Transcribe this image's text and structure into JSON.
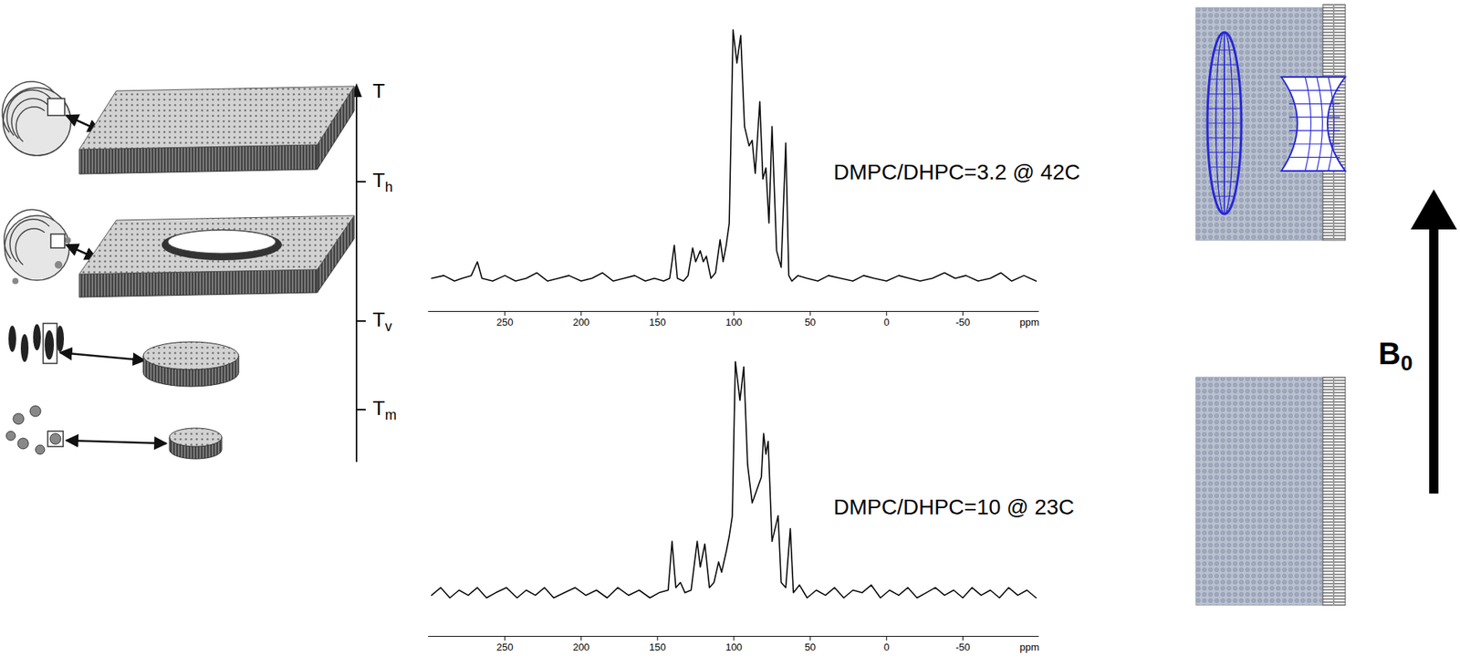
{
  "chart_data": [
    {
      "type": "line",
      "title": "DMPC/DHPC=3.2 @ 42C",
      "xlabel": "ppm",
      "xlim": [
        300,
        -100
      ],
      "xticks": [
        250,
        200,
        150,
        100,
        50,
        0,
        -50
      ],
      "ylim": [
        -2,
        104
      ],
      "tick_labels": "x",
      "color": "#000000",
      "x": [
        298,
        290,
        283,
        278,
        272,
        268,
        265,
        258,
        250,
        243,
        236,
        229,
        222,
        215,
        208,
        200,
        193,
        186,
        179,
        172,
        165,
        158,
        152,
        146,
        142,
        139,
        137,
        133,
        130,
        127,
        125,
        122,
        120,
        118,
        115,
        112,
        109,
        107,
        105,
        103,
        100.5,
        98,
        95.5,
        93,
        90,
        88,
        86,
        83,
        81,
        79,
        77,
        75,
        72,
        69,
        66,
        64,
        62,
        58,
        52,
        45,
        38,
        30,
        22,
        15,
        8,
        0,
        -8,
        -15,
        -22,
        -30,
        -38,
        -45,
        -52,
        -60,
        -68,
        -75,
        -82,
        -90,
        -98
      ],
      "values": [
        10,
        11,
        9,
        10,
        11,
        16,
        10,
        9,
        11,
        9,
        10,
        12,
        9,
        10,
        11,
        9,
        10,
        12,
        9,
        10,
        11,
        9,
        10,
        9,
        10,
        22,
        10,
        9,
        11,
        21,
        16,
        20,
        16,
        18,
        10,
        12,
        24,
        16,
        22,
        30,
        100,
        88,
        98,
        65,
        58,
        60,
        48,
        74,
        46,
        50,
        30,
        65,
        20,
        14,
        59,
        11,
        9,
        11,
        10,
        9,
        11,
        10,
        9,
        11,
        10,
        9,
        11,
        10,
        9,
        10,
        12,
        10,
        11,
        9,
        10,
        12,
        9,
        11,
        9
      ]
    },
    {
      "type": "line",
      "title": "DMPC/DHPC=10 @ 23C",
      "xlabel": "ppm",
      "xlim": [
        300,
        -100
      ],
      "xticks": [
        250,
        200,
        150,
        100,
        50,
        0,
        -50
      ],
      "ylim": [
        -7,
        104
      ],
      "tick_labels": "x",
      "color": "#000000",
      "x": [
        298,
        292,
        286,
        280,
        274,
        268,
        262,
        256,
        249,
        242,
        236,
        230,
        224,
        218,
        211,
        204,
        197,
        190,
        183,
        176,
        169,
        162,
        155,
        149,
        143,
        140.5,
        138,
        135,
        132,
        128,
        124,
        122,
        119,
        116,
        113,
        110,
        108,
        105,
        103,
        101,
        99,
        96,
        93.5,
        91,
        88,
        85,
        82,
        80.5,
        79,
        77.5,
        75,
        71,
        69,
        66,
        63,
        61,
        57,
        52,
        46,
        40,
        34,
        28,
        22,
        16,
        10,
        4,
        -2,
        -8,
        -14,
        -20,
        -26,
        -32,
        -38,
        -44,
        -50,
        -56,
        -62,
        -68,
        -74,
        -80,
        -86,
        -92,
        -98
      ],
      "values": [
        9,
        12,
        8,
        11,
        9,
        12,
        8,
        10,
        12,
        8,
        11,
        9,
        12,
        8,
        10,
        12,
        9,
        11,
        8,
        12,
        9,
        11,
        8,
        10,
        11,
        30,
        12,
        14,
        10,
        11,
        30,
        20,
        29,
        12,
        14,
        22,
        18,
        26,
        32,
        40,
        100,
        85,
        98,
        60,
        45,
        50,
        55,
        72,
        64,
        69,
        30,
        40,
        14,
        12,
        35,
        10,
        13,
        8,
        11,
        9,
        12,
        8,
        11,
        10,
        13,
        8,
        11,
        9,
        12,
        8,
        10,
        12,
        9,
        11,
        8,
        12,
        9,
        11,
        8,
        12,
        9,
        11,
        8
      ]
    }
  ],
  "diagram": {
    "temperature_axis": {
      "label": "T",
      "ticks": [
        "Th",
        "Tv",
        "Tm"
      ]
    },
    "field_label": "B0"
  }
}
